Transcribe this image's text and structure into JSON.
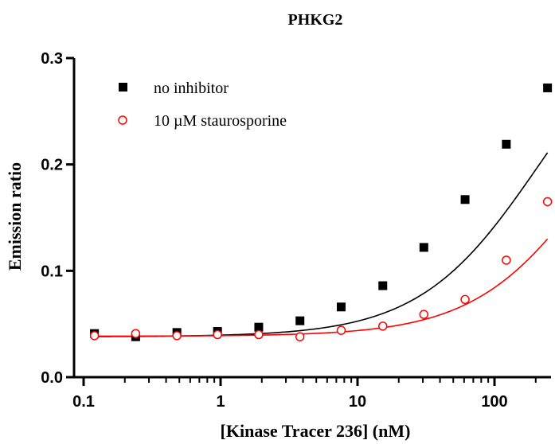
{
  "chart_data": {
    "type": "scatter",
    "title": "PHKG2",
    "xlabel": "[Kinase Tracer 236] (nM)",
    "ylabel": "Emission ratio",
    "x_scale": "log",
    "xlim": [
      0.1,
      250
    ],
    "ylim": [
      0.0,
      0.3
    ],
    "x_ticks": [
      0.1,
      1,
      10,
      100
    ],
    "x_tick_labels": [
      "0.1",
      "1",
      "10",
      "100"
    ],
    "y_ticks": [
      0.0,
      0.1,
      0.2,
      0.3
    ],
    "y_tick_labels": [
      "0.0",
      "0.1",
      "0.2",
      "0.3"
    ],
    "legend_position": "top-left",
    "series": [
      {
        "name": "no inhibitor",
        "marker": "filled-square",
        "color": "#000000",
        "x": [
          0.12,
          0.24,
          0.48,
          0.95,
          1.9,
          3.8,
          7.6,
          15.3,
          30.5,
          61,
          122,
          244
        ],
        "y": [
          0.041,
          0.038,
          0.042,
          0.043,
          0.047,
          0.053,
          0.066,
          0.086,
          0.122,
          0.167,
          0.219,
          0.272
        ],
        "fit": {
          "bottom": 0.038,
          "top": 0.36,
          "ec50": 210
        }
      },
      {
        "name": "10 µM staurosporine",
        "marker": "open-circle",
        "color": "#ff0000",
        "x": [
          0.12,
          0.24,
          0.48,
          0.95,
          1.9,
          3.8,
          7.6,
          15.3,
          30.5,
          61,
          122,
          244
        ],
        "y": [
          0.039,
          0.041,
          0.039,
          0.04,
          0.04,
          0.038,
          0.044,
          0.048,
          0.059,
          0.073,
          0.11,
          0.165
        ],
        "fit": {
          "bottom": 0.0385,
          "top": 0.34,
          "ec50": 560
        }
      }
    ]
  }
}
